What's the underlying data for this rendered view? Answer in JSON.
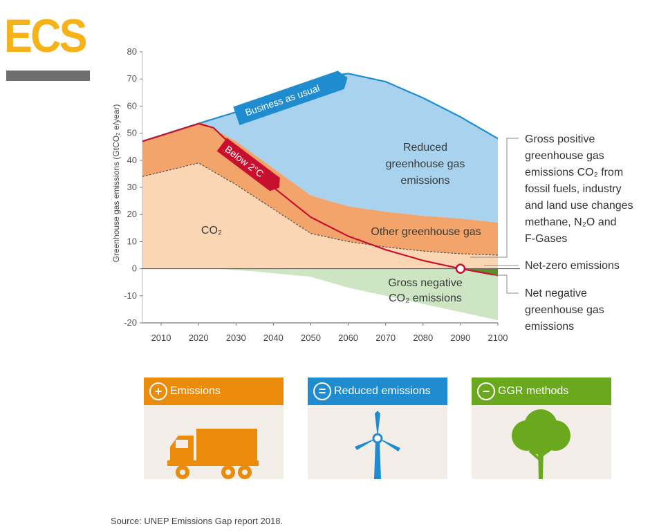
{
  "logo": {
    "text": "ECS"
  },
  "chart_data": {
    "type": "area",
    "ylabel": "Greenhouse gas emissions (GtCO₂ e/year)",
    "ylim": [
      -20,
      80
    ],
    "xlim": [
      2005,
      2100
    ],
    "yticks": [
      80,
      70,
      60,
      50,
      40,
      30,
      20,
      10,
      0,
      -10,
      -20
    ],
    "xticks": [
      2010,
      2020,
      2030,
      2040,
      2050,
      2060,
      2070,
      2080,
      2090,
      2100
    ],
    "series": [
      {
        "name": "Reduced greenhouse gas emissions",
        "color": "#a8d2ee",
        "x": [
          2005,
          2021,
          2040,
          2055,
          2060,
          2070,
          2080,
          2090,
          2100
        ],
        "values": [
          47,
          54,
          62,
          71,
          72,
          69,
          63,
          56,
          48
        ]
      },
      {
        "name": "Other greenhouse gas",
        "color": "#f2a46b",
        "x": [
          2005,
          2021,
          2030,
          2040,
          2050,
          2060,
          2070,
          2080,
          2090,
          2100
        ],
        "values": [
          47,
          54,
          47,
          37,
          27,
          23,
          21,
          19.5,
          18.5,
          17
        ]
      },
      {
        "name": "CO₂",
        "color": "#fbd6b5",
        "x": [
          2005,
          2020,
          2030,
          2040,
          2050,
          2060,
          2070,
          2080,
          2090,
          2100
        ],
        "values": [
          34,
          39,
          31,
          22,
          13,
          10,
          8,
          6.5,
          5.5,
          5
        ]
      },
      {
        "name": "Gross negative CO₂ emissions",
        "color": "#cde5c2",
        "x": [
          2025,
          2035,
          2050,
          2060,
          2070,
          2080,
          2090,
          2100
        ],
        "values": [
          0,
          -1,
          -3,
          -7,
          -10,
          -13,
          -16,
          -19
        ]
      },
      {
        "name": "Business as usual",
        "color": "#1f8cd0",
        "x": [
          2005,
          2021,
          2040,
          2055,
          2060,
          2070,
          2080,
          2090,
          2100
        ],
        "values": [
          47,
          54,
          62,
          71,
          72,
          69,
          63,
          56,
          48
        ]
      },
      {
        "name": "Below 2°C",
        "color": "#c8102e",
        "x": [
          2005,
          2020,
          2024,
          2030,
          2040,
          2050,
          2060,
          2070,
          2080,
          2090,
          2100
        ],
        "values": [
          47,
          53.5,
          52,
          44,
          30,
          19,
          12,
          7,
          3,
          0,
          -2.5
        ]
      }
    ],
    "annotations": {
      "business_as_usual": "Business as usual",
      "below_2c": "Below 2°C",
      "reduced": [
        "Reduced",
        "greenhouse gas",
        "emissions"
      ],
      "other_ghg": "Other greenhouse gas",
      "co2": "CO₂",
      "gross_negative": [
        "Gross negative",
        "CO₂ emissions"
      ],
      "gross_positive": [
        "Gross positive",
        "greenhouse gas",
        "emissions CO₂ from",
        "fossil fuels, industry",
        "and land use changes",
        "methane, N₂O and",
        "F-Gases"
      ],
      "net_zero": "Net-zero emissions",
      "net_negative": [
        "Net negative",
        "greenhouse gas",
        "emissions"
      ]
    }
  },
  "cards": [
    {
      "label": "Emissions",
      "sign": "+",
      "color": "#ea8b0c",
      "icon": "truck-icon"
    },
    {
      "label": "Reduced emissions",
      "sign": "=",
      "color": "#1f8cd0",
      "icon": "wind-turbine-icon"
    },
    {
      "label": "GGR methods",
      "sign": "−",
      "color": "#6aa81e",
      "icon": "tree-icon"
    }
  ],
  "source": "Source: UNEP Emissions Gap report 2018."
}
